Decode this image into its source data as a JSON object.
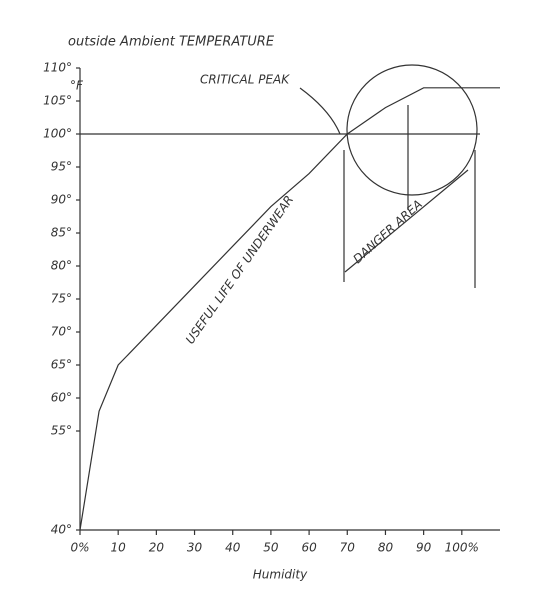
{
  "chart_data": {
    "type": "line",
    "title": "outside Ambient TEMPERATURE",
    "y_unit": "°F",
    "x_label": "Humidity",
    "x": [
      0,
      5,
      10,
      20,
      30,
      40,
      50,
      60,
      70,
      80,
      90,
      110
    ],
    "series": [
      {
        "name": "USEFUL LIFE OF UNDERWEAR",
        "color": "#222222",
        "values": [
          40,
          58,
          65,
          71,
          77,
          83,
          89,
          94,
          100,
          104,
          107,
          107
        ]
      }
    ],
    "hline": 100,
    "annotations": [
      "CRITICAL PEAK",
      "DANGER AREA"
    ],
    "xlim": [
      0,
      110
    ],
    "xticks": [
      {
        "value": 0,
        "label": "0%"
      },
      10,
      20,
      30,
      40,
      50,
      60,
      70,
      80,
      90,
      {
        "value": 100,
        "label": "100%"
      }
    ],
    "ylim": [
      40,
      110
    ],
    "yticks": [
      {
        "value": 40,
        "label": "40°"
      },
      {
        "value": 55,
        "label": "55°"
      },
      {
        "value": 60,
        "label": "60°"
      },
      {
        "value": 65,
        "label": "65°"
      },
      {
        "value": 70,
        "label": "70°"
      },
      {
        "value": 75,
        "label": "75°"
      },
      {
        "value": 80,
        "label": "80°"
      },
      {
        "value": 85,
        "label": "85°"
      },
      {
        "value": 90,
        "label": "90°"
      },
      {
        "value": 95,
        "label": "95°"
      },
      {
        "value": 100,
        "label": "100°"
      },
      {
        "value": 105,
        "label": "105°"
      },
      {
        "value": 110,
        "label": "110°"
      }
    ]
  }
}
